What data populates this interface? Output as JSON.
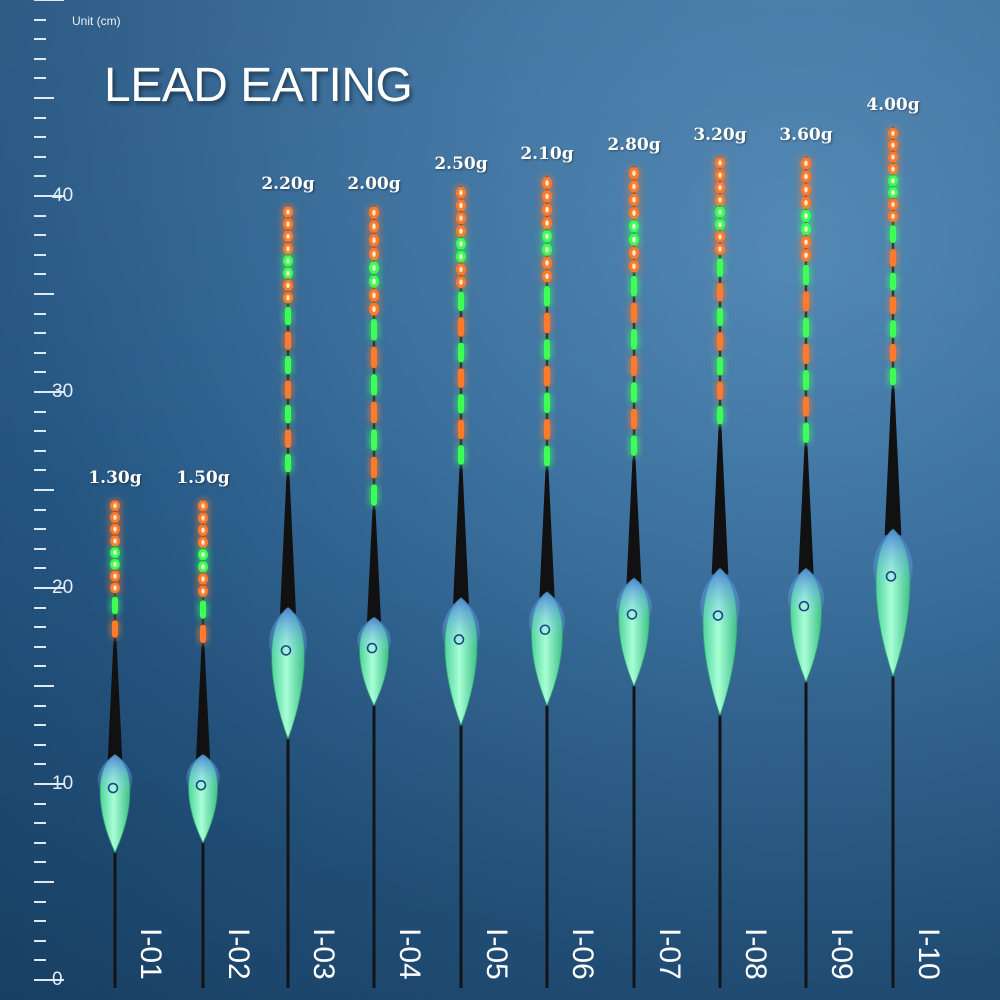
{
  "unit_label": "Unit (cm)",
  "title": "LEAD EATING",
  "ruler": {
    "min": 0,
    "max": 50,
    "labels": [
      "0",
      "10",
      "20",
      "30",
      "40"
    ],
    "label_values": [
      0,
      10,
      20,
      30,
      40
    ]
  },
  "colors": {
    "orange": "#ff7a2a",
    "green": "#3dff55",
    "body": "#7ef0b5",
    "cap": "#c9dcff"
  },
  "floats": [
    {
      "code": "I-01",
      "weight": "1.30g",
      "tip_top_cm": 24.5,
      "body_top_cm": 11.5,
      "body_bottom_cm": 6.5
    },
    {
      "code": "I-02",
      "weight": "1.50g",
      "tip_top_cm": 24.5,
      "body_top_cm": 11.5,
      "body_bottom_cm": 7
    },
    {
      "code": "I-03",
      "weight": "2.20g",
      "tip_top_cm": 39.5,
      "body_top_cm": 19,
      "body_bottom_cm": 12.3
    },
    {
      "code": "I-04",
      "weight": "2.00g",
      "tip_top_cm": 39.5,
      "body_top_cm": 18.5,
      "body_bottom_cm": 14
    },
    {
      "code": "I-05",
      "weight": "2.50g",
      "tip_top_cm": 40.5,
      "body_top_cm": 19.5,
      "body_bottom_cm": 13
    },
    {
      "code": "I-06",
      "weight": "2.10g",
      "tip_top_cm": 41,
      "body_top_cm": 19.8,
      "body_bottom_cm": 14
    },
    {
      "code": "I-07",
      "weight": "2.80g",
      "tip_top_cm": 41.5,
      "body_top_cm": 20.5,
      "body_bottom_cm": 15
    },
    {
      "code": "I-08",
      "weight": "3.20g",
      "tip_top_cm": 42,
      "body_top_cm": 21,
      "body_bottom_cm": 13.5
    },
    {
      "code": "I-09",
      "weight": "3.60g",
      "tip_top_cm": 42,
      "body_top_cm": 21,
      "body_bottom_cm": 15.2
    },
    {
      "code": "I-10",
      "weight": "4.00g",
      "tip_top_cm": 43.5,
      "body_top_cm": 23,
      "body_bottom_cm": 15.5
    }
  ]
}
